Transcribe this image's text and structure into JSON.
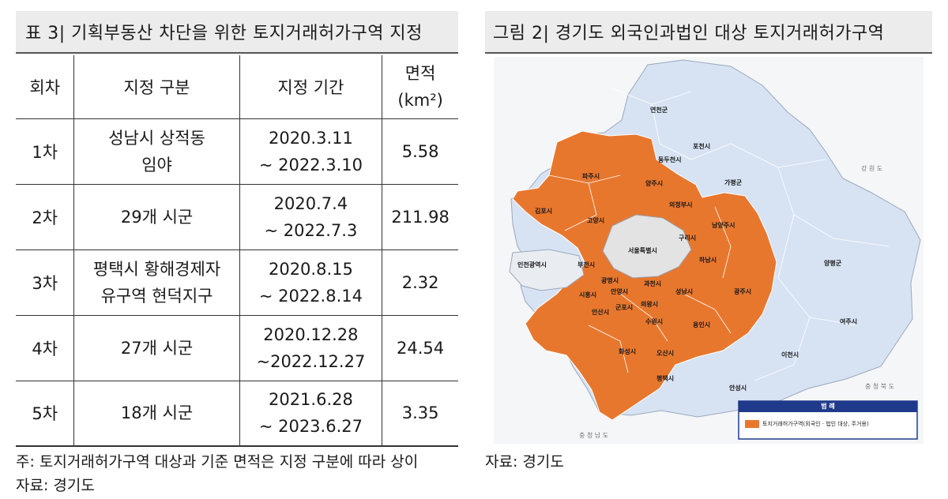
{
  "left_panel": {
    "title": "표 3| 기획부동산 차단을 위한 토지거래허가구역 지정",
    "headers": [
      "회차",
      "지정 구분",
      "지정 기간",
      "면적",
      "(km²)"
    ],
    "rows": [
      {
        "round": "1차",
        "area_lines": [
          "성남시 상적동",
          "임야"
        ],
        "period_lines": [
          "2020.3.11",
          "~ 2022.3.10"
        ],
        "size": "5.58"
      },
      {
        "round": "2차",
        "area_lines": [
          "29개 시군"
        ],
        "period_lines": [
          "2020.7.4",
          "~ 2022.7.3"
        ],
        "size": "211.98"
      },
      {
        "round": "3차",
        "area_lines": [
          "평택시 황해경제자",
          "유구역 현덕지구"
        ],
        "period_lines": [
          "2020.8.15",
          "~ 2022.8.14"
        ],
        "size": "2.32"
      },
      {
        "round": "4차",
        "area_lines": [
          "27개 시군"
        ],
        "period_lines": [
          "2020.12.28",
          "~2022.12.27"
        ],
        "size": "24.54"
      },
      {
        "round": "5차",
        "area_lines": [
          "18개 시군"
        ],
        "period_lines": [
          "2021.6.28",
          "~ 2023.6.27"
        ],
        "size": "3.35"
      }
    ],
    "note": "주: 토지거래허가구역 대상과 기준 면적은 지정 구분에 따라 상이",
    "source": "자료: 경기도"
  },
  "right_panel": {
    "title": "그림 2| 경기도 외국인과법인 대상 토지거래허가구역",
    "source": "자료: 경기도",
    "map": {
      "colors": {
        "designated": "#e8772e",
        "gyeonggi": "#d7e3f3",
        "seoul": "#e3e3e3",
        "outside": "#f5f6f8",
        "border": "#ffffff",
        "legend_header": "#1f3a8a"
      },
      "region_labels": [
        "강 원 도",
        "충 청 북 도",
        "충 청 남 도",
        "인천광역시",
        "서울특별시"
      ],
      "city_labels": [
        "연천군",
        "포천시",
        "동두천시",
        "가평군",
        "파주시",
        "양주시",
        "의정부시",
        "김포시",
        "고양시",
        "남양주시",
        "구리시",
        "하남시",
        "양평군",
        "부천시",
        "광명시",
        "과천시",
        "시흥시",
        "안양시",
        "군포시",
        "의왕시",
        "성남시",
        "광주시",
        "안산시",
        "수원시",
        "용인시",
        "여주시",
        "화성시",
        "오산시",
        "이천시",
        "평택시",
        "안성시"
      ],
      "legend_title": "범 례",
      "legend_item": "토지거래허가구역(외국인 · 법인 대상, 주거용)"
    }
  }
}
